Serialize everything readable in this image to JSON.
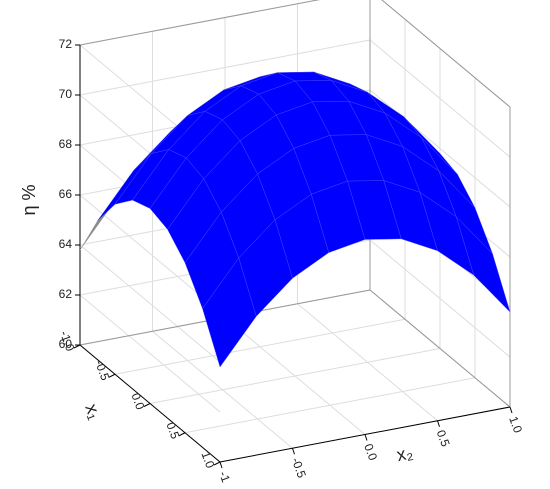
{
  "chart_data": {
    "type": "surface",
    "zlabel": "η %",
    "x1label": "x₁",
    "x2label": "x₂",
    "x1": [
      -1,
      -0.75,
      -0.5,
      -0.25,
      0,
      0.25,
      0.5,
      0.75,
      1
    ],
    "x2": [
      -1,
      -0.75,
      -0.5,
      -0.25,
      0,
      0.25,
      0.5,
      0.75,
      1
    ],
    "z": [
      [
        63.8,
        65.55,
        66.8,
        67.55,
        67.8,
        67.55,
        66.8,
        65.55,
        63.8
      ],
      [
        65.55,
        67.3,
        68.55,
        69.3,
        69.55,
        69.3,
        68.55,
        67.3,
        65.55
      ],
      [
        66.8,
        68.55,
        69.8,
        70.55,
        70.8,
        70.55,
        69.8,
        68.55,
        66.8
      ],
      [
        67.55,
        69.3,
        70.55,
        71.3,
        71.55,
        71.3,
        70.55,
        69.3,
        67.55
      ],
      [
        67.8,
        69.55,
        70.8,
        71.55,
        71.8,
        71.55,
        70.8,
        69.55,
        67.8
      ],
      [
        67.55,
        69.3,
        70.55,
        71.3,
        71.55,
        71.3,
        70.55,
        69.3,
        67.55
      ],
      [
        66.8,
        68.55,
        69.8,
        70.55,
        70.8,
        70.55,
        69.8,
        68.55,
        66.8
      ],
      [
        65.55,
        67.3,
        68.55,
        69.3,
        69.55,
        69.3,
        68.55,
        67.3,
        65.55
      ],
      [
        63.8,
        65.55,
        66.8,
        67.55,
        67.8,
        67.55,
        66.8,
        65.55,
        63.8
      ]
    ],
    "color": "#0000ff",
    "back_color": "#8c8c8c",
    "zlim": [
      60,
      72
    ],
    "zticks": [
      60,
      62,
      64,
      66,
      68,
      70,
      72
    ],
    "x1lim": [
      -1,
      1
    ],
    "x1ticks": [
      {
        "value": -1,
        "label": "-1.0"
      },
      {
        "value": -0.5,
        "label": "-0.5"
      },
      {
        "value": 0,
        "label": "0.0"
      },
      {
        "value": 0.5,
        "label": "0.5"
      },
      {
        "value": 1,
        "label": "1.0"
      }
    ],
    "x2lim": [
      -1,
      1
    ],
    "x2ticks": [
      {
        "value": -1,
        "label": "-1.0"
      },
      {
        "value": -0.5,
        "label": "-0.5"
      },
      {
        "value": 0,
        "label": "0.0"
      },
      {
        "value": 0.5,
        "label": "0.5"
      },
      {
        "value": 1,
        "label": "1.0"
      }
    ],
    "grid": true
  }
}
